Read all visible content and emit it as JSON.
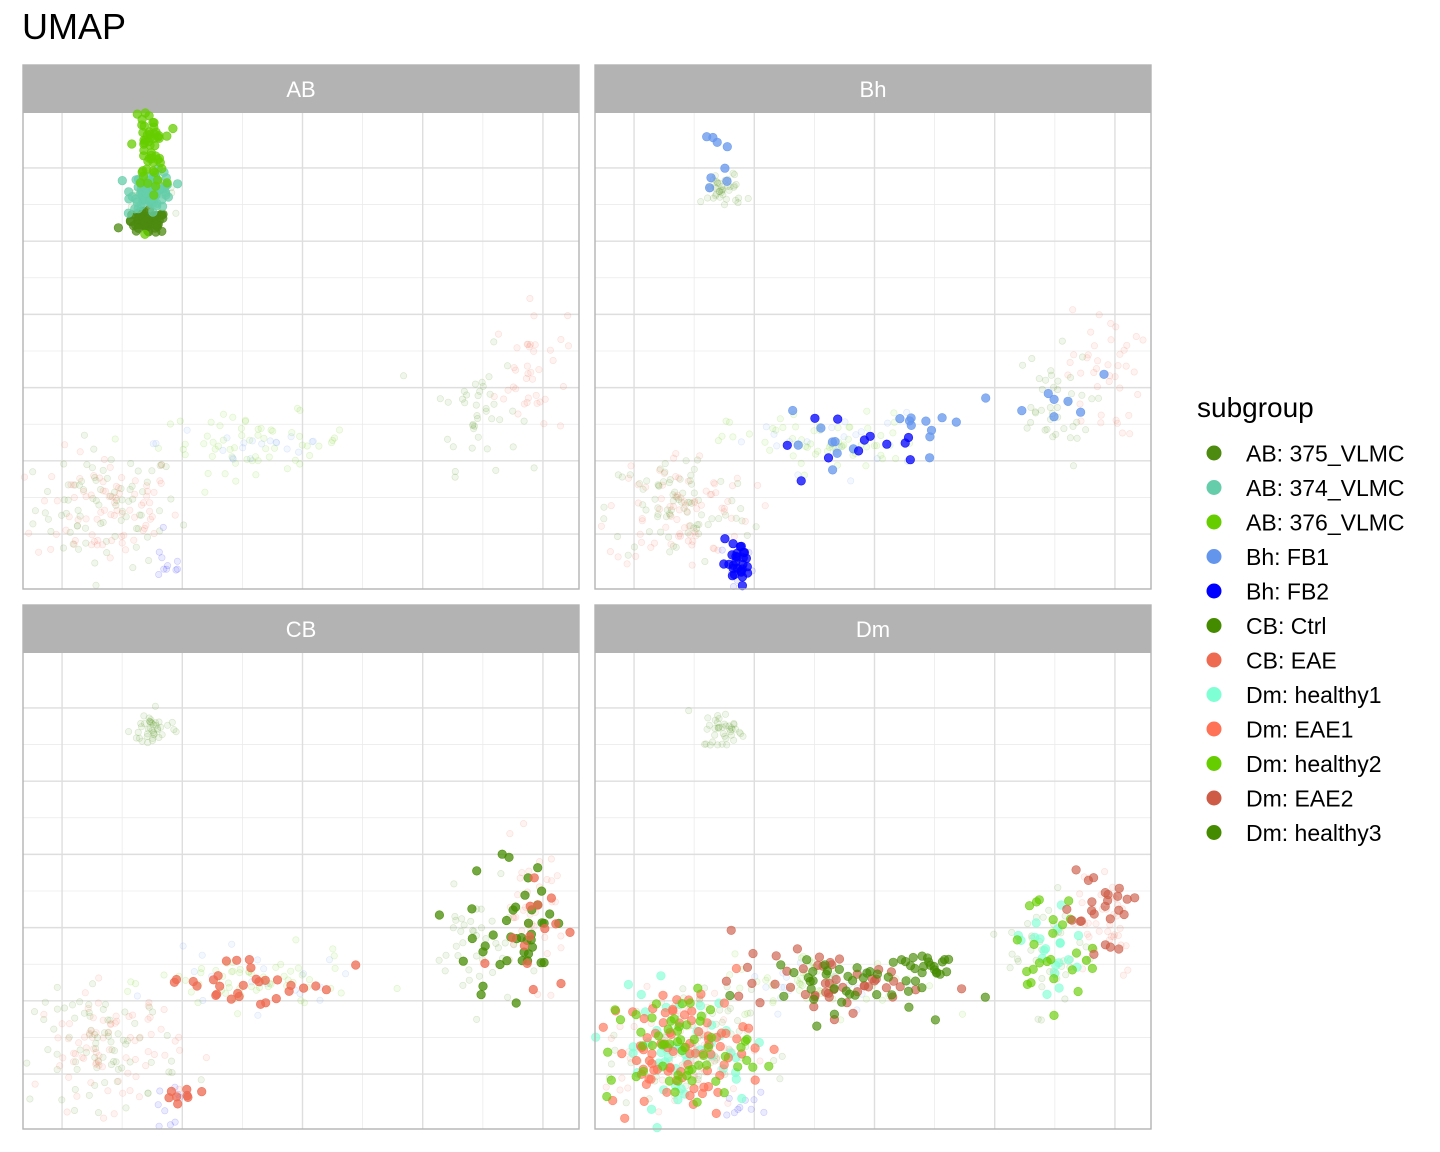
{
  "chart_data": {
    "type": "scatter",
    "title": "UMAP",
    "xlabel": "",
    "ylabel": "",
    "grid": true,
    "xlim": [
      -5.3,
      13.2
    ],
    "ylim": [
      -7.5,
      5.5
    ],
    "x_breaks": [
      -4,
      0,
      4,
      8,
      12
    ],
    "y_breaks": [
      -6,
      -4,
      -2,
      0,
      2,
      4
    ],
    "facets": [
      "AB",
      "Bh",
      "CB",
      "Dm"
    ],
    "legend": {
      "title": "subgroup",
      "position": "right",
      "entries": [
        {
          "label": "AB: 375_VLMC",
          "color": "#4C8A10"
        },
        {
          "label": "AB: 374_VLMC",
          "color": "#66CDAA"
        },
        {
          "label": "AB: 376_VLMC",
          "color": "#66CD00"
        },
        {
          "label": "Bh: FB1",
          "color": "#6495ED"
        },
        {
          "label": "Bh: FB2",
          "color": "#0000FF"
        },
        {
          "label": "CB: Ctrl",
          "color": "#458B00"
        },
        {
          "label": "CB: EAE",
          "color": "#EE6A50"
        },
        {
          "label": "Dm: healthy1",
          "color": "#7FFFD4"
        },
        {
          "label": "Dm: EAE1",
          "color": "#FF7256"
        },
        {
          "label": "Dm: healthy2",
          "color": "#66CD00"
        },
        {
          "label": "Dm: EAE2",
          "color": "#CD5B45"
        },
        {
          "label": "Dm: healthy3",
          "color": "#458B00"
        }
      ]
    },
    "clusters": [
      {
        "id": "top_stalk",
        "x": -1.1,
        "y": 4.6,
        "sx": 0.25,
        "sy": 0.6
      },
      {
        "id": "top_mid",
        "x": -1.0,
        "y": 3.4,
        "sx": 0.35,
        "sy": 0.25
      },
      {
        "id": "top_base",
        "x": -1.2,
        "y": 2.5,
        "sx": 0.35,
        "sy": 0.15
      },
      {
        "id": "left_blob",
        "x": -2.5,
        "y": -5.3,
        "sx": 1.2,
        "sy": 0.8
      },
      {
        "id": "left_tail",
        "x": -4.4,
        "y": -6.0,
        "sx": 0.6,
        "sy": 0.6
      },
      {
        "id": "mid_band",
        "x": 2.4,
        "y": -3.5,
        "sx": 1.6,
        "sy": 0.4
      },
      {
        "id": "right_band",
        "x": 5.6,
        "y": -3.0,
        "sx": 0.7,
        "sy": 0.2
      },
      {
        "id": "small_right_low",
        "x": 1.0,
        "y": -4.8,
        "sx": 0.4,
        "sy": 0.3
      },
      {
        "id": "bottom_small",
        "x": -0.2,
        "y": -6.8,
        "sx": 0.4,
        "sy": 0.3
      },
      {
        "id": "blue_spot",
        "x": -0.5,
        "y": -6.8,
        "sx": 0.3,
        "sy": 0.3
      },
      {
        "id": "wing_left",
        "x": 9.8,
        "y": -2.6,
        "sx": 0.7,
        "sy": 0.8
      },
      {
        "id": "wing_right",
        "x": 11.6,
        "y": -1.6,
        "sx": 0.6,
        "sy": 0.9
      }
    ],
    "layers": [
      {
        "facet": "AB",
        "group": "AB: 375_VLMC",
        "cluster": "top_base",
        "n": 70,
        "alpha": 0.75
      },
      {
        "facet": "AB",
        "group": "AB: 374_VLMC",
        "cluster": "top_mid",
        "n": 80,
        "alpha": 0.75
      },
      {
        "facet": "AB",
        "group": "AB: 376_VLMC",
        "cluster": "top_stalk",
        "n": 60,
        "alpha": 0.75
      },
      {
        "facet": "Bh",
        "group": "Bh: FB1",
        "cluster": "top_stalk",
        "n": 10,
        "alpha": 0.75
      },
      {
        "facet": "Bh",
        "group": "Bh: FB1",
        "cluster": "right_band",
        "n": 8,
        "alpha": 0.75
      },
      {
        "facet": "Bh",
        "group": "Bh: FB1",
        "cluster": "mid_band",
        "n": 10,
        "alpha": 0.75
      },
      {
        "facet": "Bh",
        "group": "Bh: FB1",
        "cluster": "wing_left",
        "n": 8,
        "alpha": 0.75
      },
      {
        "facet": "Bh",
        "group": "Bh: FB2",
        "cluster": "blue_spot",
        "n": 30,
        "alpha": 0.75
      },
      {
        "facet": "Bh",
        "group": "Bh: FB2",
        "cluster": "mid_band",
        "n": 12,
        "alpha": 0.75
      },
      {
        "facet": "CB",
        "group": "CB: Ctrl",
        "cluster": "wing_right",
        "n": 30,
        "alpha": 0.75
      },
      {
        "facet": "CB",
        "group": "CB: Ctrl",
        "cluster": "wing_left",
        "n": 12,
        "alpha": 0.75
      },
      {
        "facet": "CB",
        "group": "CB: EAE",
        "cluster": "mid_band",
        "n": 30,
        "alpha": 0.75
      },
      {
        "facet": "CB",
        "group": "CB: EAE",
        "cluster": "wing_right",
        "n": 14,
        "alpha": 0.75
      },
      {
        "facet": "CB",
        "group": "CB: EAE",
        "cluster": "bottom_small",
        "n": 8,
        "alpha": 0.75
      },
      {
        "facet": "Dm",
        "group": "Dm: healthy1",
        "cluster": "left_blob",
        "n": 50,
        "alpha": 0.65
      },
      {
        "facet": "Dm",
        "group": "Dm: healthy1",
        "cluster": "wing_left",
        "n": 20,
        "alpha": 0.65
      },
      {
        "facet": "Dm",
        "group": "Dm: EAE1",
        "cluster": "left_blob",
        "n": 90,
        "alpha": 0.65
      },
      {
        "facet": "Dm",
        "group": "Dm: healthy2",
        "cluster": "left_blob",
        "n": 60,
        "alpha": 0.65
      },
      {
        "facet": "Dm",
        "group": "Dm: healthy2",
        "cluster": "wing_left",
        "n": 25,
        "alpha": 0.65
      },
      {
        "facet": "Dm",
        "group": "Dm: EAE2",
        "cluster": "mid_band",
        "n": 50,
        "alpha": 0.65
      },
      {
        "facet": "Dm",
        "group": "Dm: EAE2",
        "cluster": "wing_right",
        "n": 25,
        "alpha": 0.65
      },
      {
        "facet": "Dm",
        "group": "Dm: healthy3",
        "cluster": "mid_band",
        "n": 40,
        "alpha": 0.65
      },
      {
        "facet": "Dm",
        "group": "Dm: healthy3",
        "cluster": "right_band",
        "n": 20,
        "alpha": 0.65
      },
      {
        "facet": "all",
        "group": "AB: 375_VLMC",
        "cluster": "left_blob",
        "n": 80,
        "alpha": 0.08
      },
      {
        "facet": "all",
        "group": "CB: EAE",
        "cluster": "left_blob",
        "n": 80,
        "alpha": 0.08
      },
      {
        "facet": "all",
        "group": "CB: Ctrl",
        "cluster": "wing_left",
        "n": 40,
        "alpha": 0.08
      },
      {
        "facet": "all",
        "group": "CB: EAE",
        "cluster": "wing_right",
        "n": 40,
        "alpha": 0.08
      },
      {
        "facet": "all",
        "group": "Dm: healthy2",
        "cluster": "mid_band",
        "n": 60,
        "alpha": 0.08
      },
      {
        "facet": "all",
        "group": "Dm: healthy3",
        "cluster": "top_mid",
        "n": 40,
        "alpha": 0.08
      },
      {
        "facet": "all",
        "group": "Bh: FB1",
        "cluster": "mid_band",
        "n": 20,
        "alpha": 0.08
      },
      {
        "facet": "all",
        "group": "Bh: FB2",
        "cluster": "blue_spot",
        "n": 10,
        "alpha": 0.08
      }
    ]
  }
}
